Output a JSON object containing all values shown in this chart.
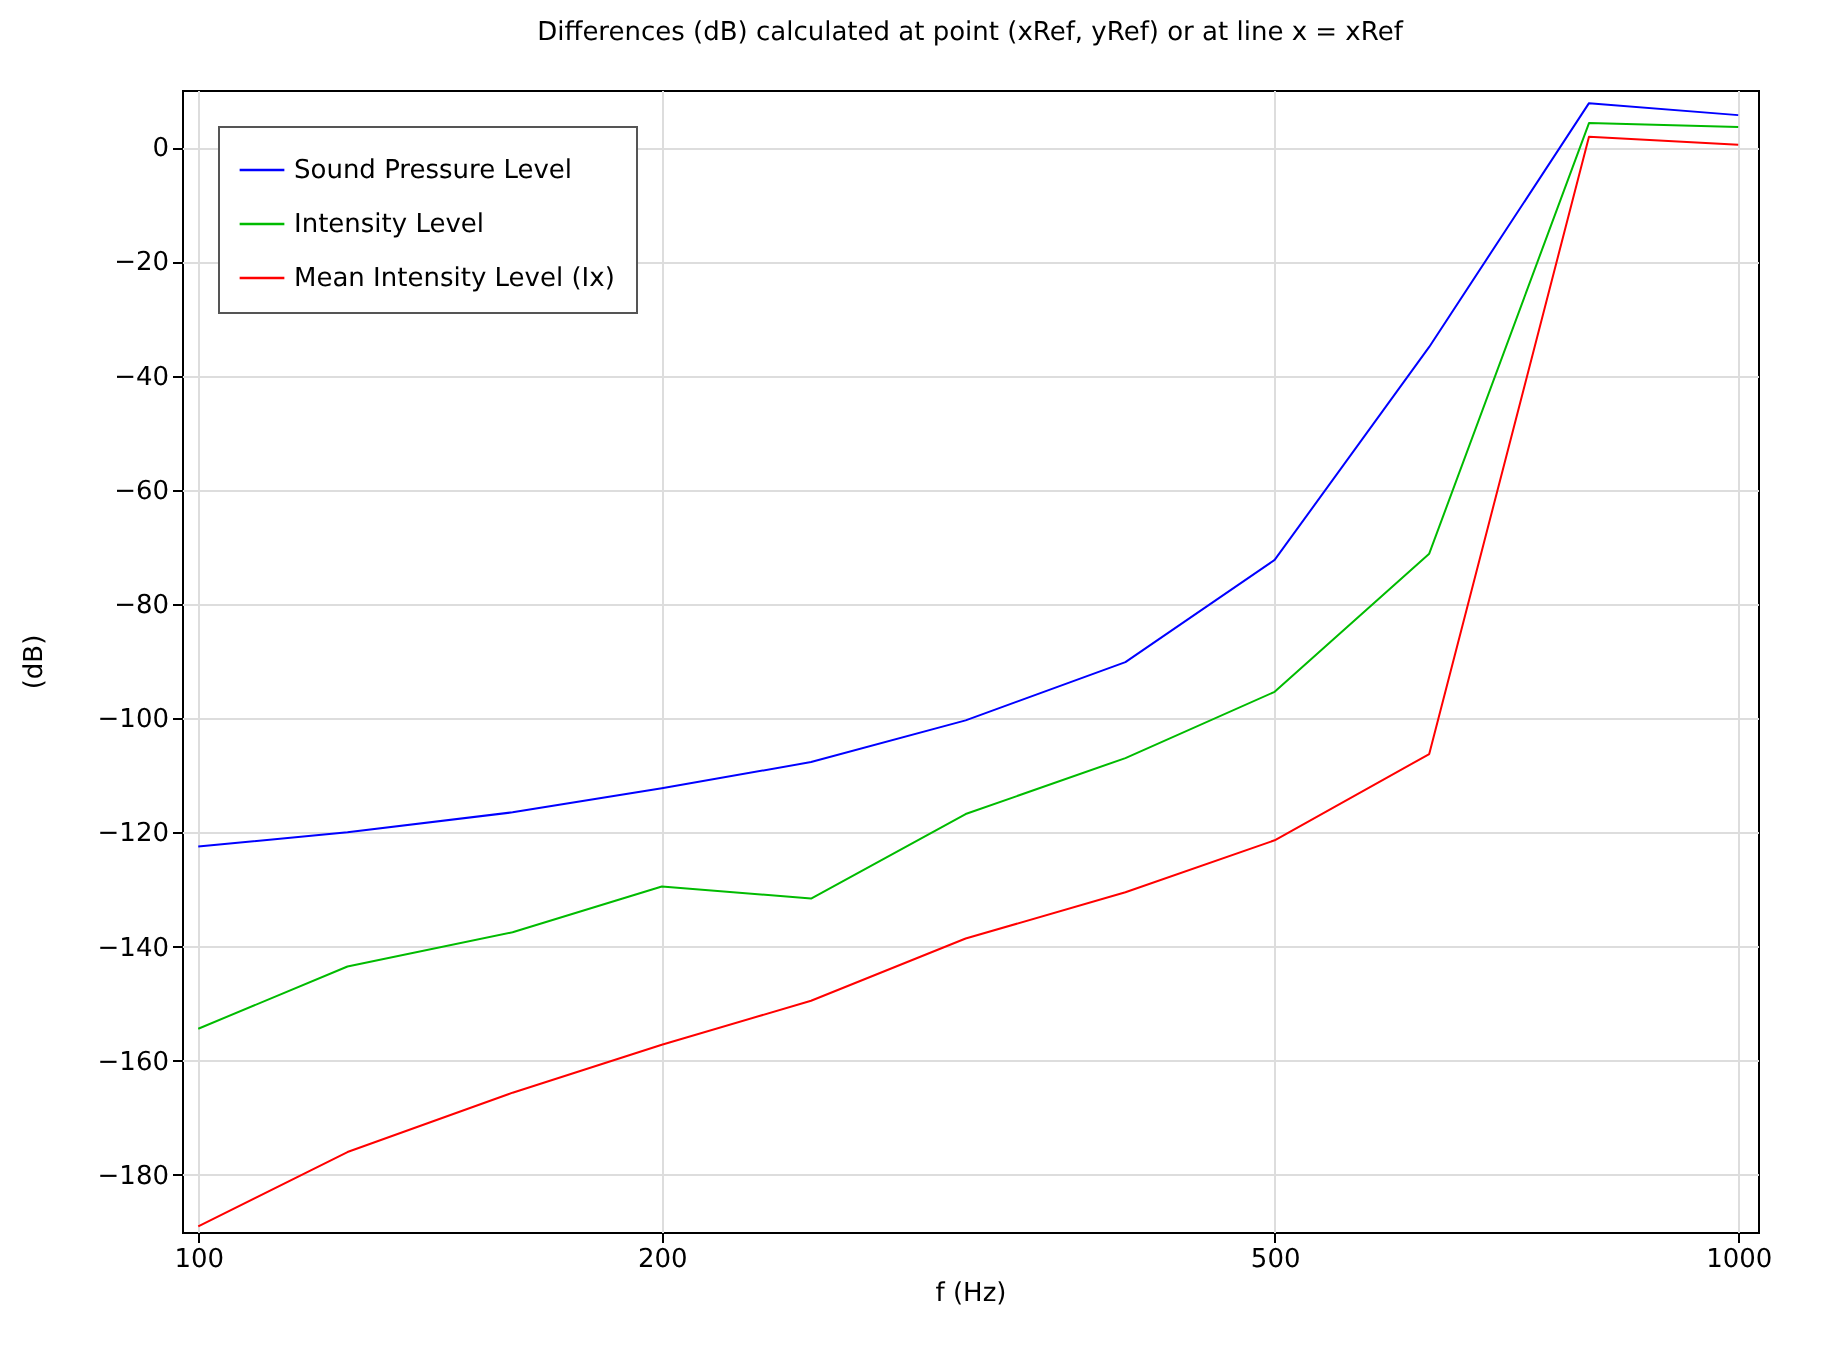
{
  "chart_data": {
    "type": "line",
    "title": "Differences (dB) calculated at point (xRef, yRef) or at line x = xRef",
    "xlabel": "f (Hz)",
    "ylabel": "(dB)",
    "x": [
      100,
      125,
      160,
      200,
      250,
      315,
      400,
      500,
      630,
      800,
      1000
    ],
    "series": [
      {
        "name": "Sound Pressure Level",
        "color": "#0000ff",
        "values": [
          -122.5,
          -120,
          -116.5,
          -112.3,
          -107.7,
          -100.4,
          -90.2,
          -72.3,
          -35,
          7.7,
          5.6
        ]
      },
      {
        "name": "Intensity Level",
        "color": "#00bb00",
        "values": [
          -154.4,
          -143.5,
          -137.5,
          -129.5,
          -131.6,
          -116.8,
          -107,
          -95.4,
          -71.2,
          4.2,
          3.5
        ]
      },
      {
        "name": "Mean Intensity Level (Ix)",
        "color": "#ff0000",
        "values": [
          -189,
          -176,
          -165.6,
          -157.2,
          -149.5,
          -138.6,
          -130.5,
          -121.4,
          -106.3,
          1.8,
          0.4
        ]
      }
    ],
    "log": "x",
    "xlim": [
      97.6,
      1030
    ],
    "xticks": [
      100,
      200,
      500,
      1000
    ],
    "ylim": [
      -190,
      10
    ],
    "yticks": [
      -180,
      -160,
      -140,
      -120,
      -100,
      -80,
      -60,
      -40,
      -20,
      0
    ],
    "grid": true,
    "legend": "top left",
    "marker": "none",
    "line_style": "solid"
  }
}
